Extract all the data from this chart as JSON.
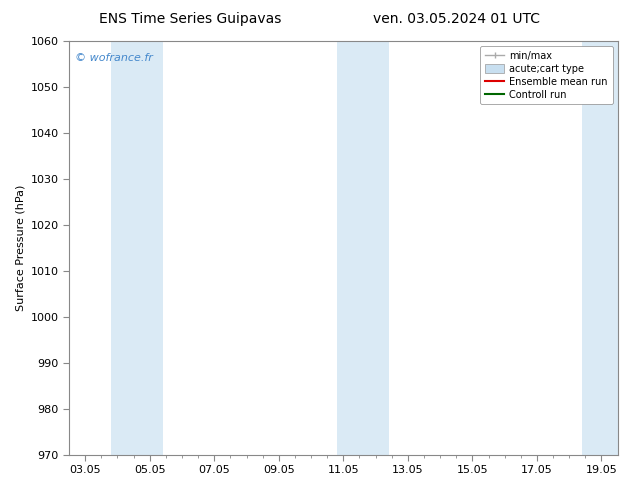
{
  "title_left": "ENS Time Series Guipavas",
  "title_right": "ven. 03.05.2024 01 UTC",
  "ylabel": "Surface Pressure (hPa)",
  "ylim": [
    970,
    1060
  ],
  "yticks": [
    970,
    980,
    990,
    1000,
    1010,
    1020,
    1030,
    1040,
    1050,
    1060
  ],
  "xlim": [
    -0.5,
    16.5
  ],
  "xtick_major_positions": [
    0,
    2,
    4,
    6,
    8,
    10,
    12,
    14,
    16
  ],
  "xtick_labels": [
    "03.05",
    "05.05",
    "07.05",
    "09.05",
    "11.05",
    "13.05",
    "15.05",
    "17.05",
    "19.05"
  ],
  "bands": [
    {
      "xmin": 0.8,
      "xmax": 2.4
    },
    {
      "xmin": 7.8,
      "xmax": 9.4
    },
    {
      "xmin": 15.4,
      "xmax": 16.5
    }
  ],
  "band_color": "#daeaf5",
  "watermark": "© wofrance.fr",
  "watermark_color": "#4488cc",
  "legend_entries": [
    {
      "label": "min/max",
      "type": "errorbar"
    },
    {
      "label": "acute;cart type",
      "type": "patch"
    },
    {
      "label": "Ensemble mean run",
      "type": "line",
      "color": "#dd0000"
    },
    {
      "label": "Controll run",
      "type": "line",
      "color": "#006600"
    }
  ],
  "errorbar_color": "#aaaaaa",
  "patch_color": "#c8dff0",
  "patch_edge_color": "#999999",
  "bg_color": "#ffffff",
  "spine_color": "#888888",
  "tick_color": "#444444",
  "title_fontsize": 10,
  "axis_fontsize": 8,
  "legend_fontsize": 7,
  "watermark_fontsize": 8
}
